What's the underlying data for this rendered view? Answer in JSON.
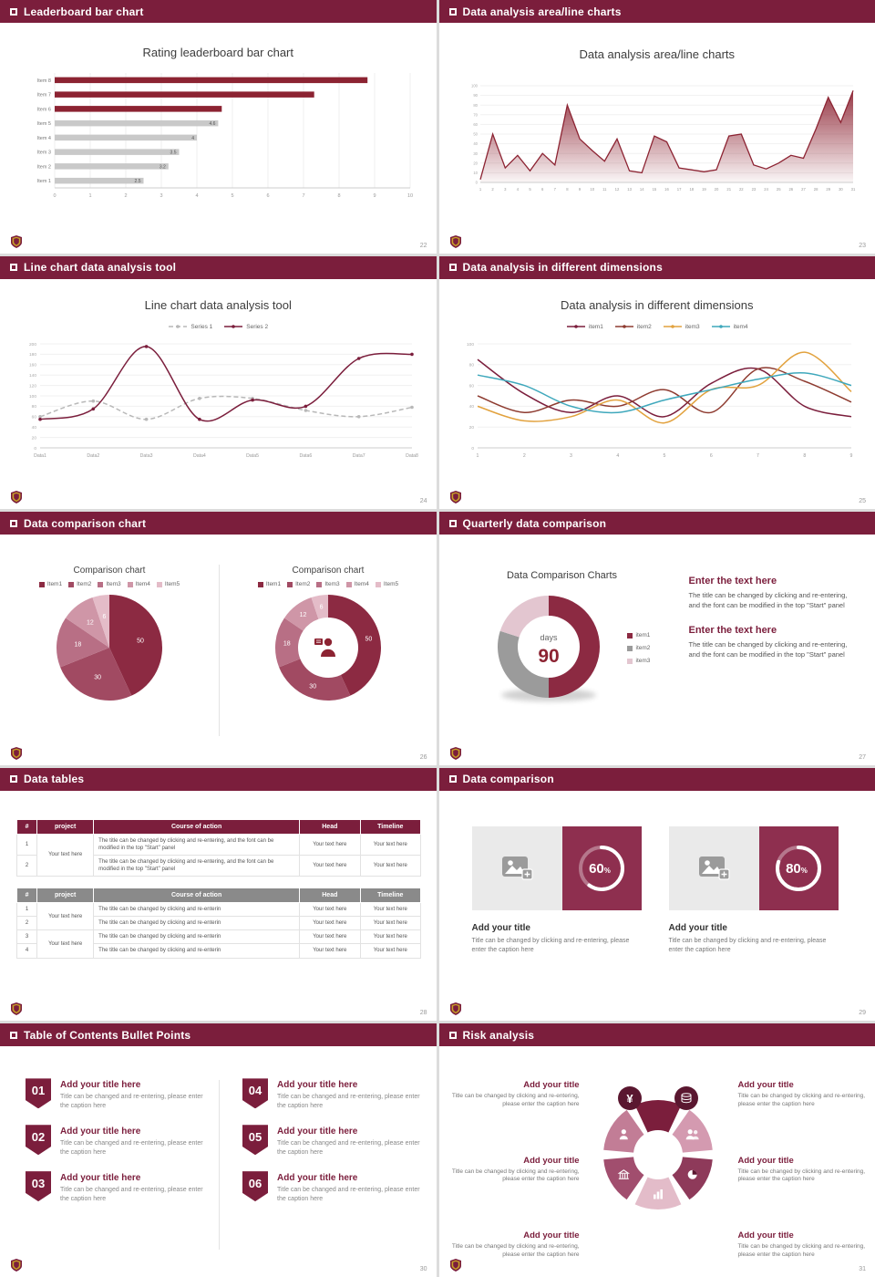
{
  "theme": {
    "maroon": "#7b1e3c",
    "chart_maroon": "#8c2332",
    "gray_bar": "#c9c9c9",
    "card_maroon": "#8e2f4f",
    "badge_dark": "#5a1730",
    "crest_gold": "#c9a227"
  },
  "icons": [
    "square-bullet-icon",
    "crest-logo",
    "image-placeholder-icon",
    "yen-moneybag-icon",
    "coins-icon",
    "people-icon",
    "pie-chart-icon",
    "bar-chart-icon",
    "bank-icon",
    "person-icon",
    "presenter-icon"
  ],
  "slides": [
    {
      "header": "Leaderboard bar chart",
      "page": "22",
      "title": "Rating leaderboard bar chart",
      "chart_data": {
        "type": "bar",
        "orientation": "horizontal",
        "categories": [
          "Item 1",
          "Item 2",
          "Item 3",
          "Item 4",
          "Item 5",
          "Item 6",
          "Item 7",
          "Item 8"
        ],
        "values": [
          2.5,
          3.2,
          3.5,
          4,
          4.6,
          4.7,
          7.3,
          8.8
        ],
        "value_labels": [
          "2.5",
          "3.2",
          "3.5",
          "4",
          "4.6",
          null,
          null,
          null
        ],
        "colors": [
          "#c9c9c9",
          "#c9c9c9",
          "#c9c9c9",
          "#c9c9c9",
          "#c9c9c9",
          "#8c2332",
          "#8c2332",
          "#8c2332"
        ],
        "xlim": [
          0,
          10
        ],
        "xticks": [
          0,
          1,
          2,
          3,
          4,
          5,
          6,
          7,
          8,
          9,
          10
        ]
      }
    },
    {
      "header": "Data analysis area/line charts",
      "page": "23",
      "title": "Data analysis area/line charts",
      "chart_data": {
        "type": "area",
        "x": [
          1,
          2,
          3,
          4,
          5,
          6,
          7,
          8,
          9,
          10,
          11,
          12,
          13,
          14,
          15,
          16,
          17,
          18,
          19,
          20,
          21,
          22,
          23,
          24,
          25,
          26,
          27,
          28,
          29,
          30,
          31
        ],
        "values": [
          3,
          50,
          15,
          28,
          12,
          30,
          18,
          80,
          45,
          33,
          22,
          45,
          12,
          10,
          48,
          42,
          15,
          13,
          11,
          13,
          48,
          50,
          18,
          14,
          20,
          28,
          25,
          55,
          88,
          62,
          95
        ],
        "ylim": [
          0,
          100
        ],
        "yticks": [
          0,
          10,
          20,
          30,
          40,
          50,
          60,
          70,
          80,
          90,
          100
        ]
      }
    },
    {
      "header": "Line chart data analysis tool",
      "page": "24",
      "title": "Line chart data analysis tool",
      "chart_data": {
        "type": "line",
        "smooth": true,
        "markers": true,
        "categories": [
          "Data1",
          "Data2",
          "Data3",
          "Data4",
          "Data5",
          "Data6",
          "Data7",
          "Data8"
        ],
        "ylim": [
          0,
          200
        ],
        "yticks": [
          0,
          20,
          40,
          60,
          80,
          100,
          120,
          140,
          160,
          180,
          200
        ],
        "series": [
          {
            "name": "Series 1",
            "color": "#b8b8b8",
            "dash": "5 3",
            "values": [
              60,
              90,
              55,
              95,
              95,
              72,
              60,
              78
            ]
          },
          {
            "name": "Series 2",
            "color": "#7b1e3c",
            "dash": null,
            "values": [
              55,
              75,
              195,
              55,
              92,
              80,
              172,
              180
            ]
          }
        ]
      }
    },
    {
      "header": "Data analysis in different dimensions",
      "page": "25",
      "title": "Data analysis in different dimensions",
      "chart_data": {
        "type": "line",
        "smooth": true,
        "markers": false,
        "x": [
          1,
          2,
          3,
          4,
          5,
          6,
          7,
          8,
          9
        ],
        "ylim": [
          0,
          100
        ],
        "yticks": [
          0,
          20,
          40,
          60,
          80,
          100
        ],
        "series": [
          {
            "name": "item1",
            "color": "#7b1e3c",
            "dash": null,
            "values": [
              85,
              52,
              34,
              50,
              30,
              62,
              76,
              40,
              30
            ]
          },
          {
            "name": "item2",
            "color": "#8e3b30",
            "dash": null,
            "values": [
              50,
              34,
              46,
              40,
              56,
              34,
              76,
              64,
              44
            ]
          },
          {
            "name": "item3",
            "color": "#e2a23e",
            "dash": null,
            "values": [
              40,
              26,
              30,
              46,
              24,
              56,
              60,
              92,
              54
            ]
          },
          {
            "name": "item4",
            "color": "#3fa8bc",
            "dash": null,
            "values": [
              70,
              60,
              40,
              34,
              46,
              56,
              66,
              72,
              60
            ]
          }
        ]
      }
    },
    {
      "header": "Data comparison chart",
      "page": "26",
      "charts": [
        {
          "type": "pie",
          "title": "Comparison chart",
          "labels": [
            "Item1",
            "Item2",
            "Item3",
            "Item4",
            "Item5"
          ],
          "values": [
            50,
            30,
            18,
            12,
            6
          ],
          "colors": [
            "#8c2a42",
            "#a14a62",
            "#b86f85",
            "#cf96a7",
            "#e4bcc8"
          ]
        },
        {
          "type": "donut",
          "title": "Comparison chart",
          "labels": [
            "Item1",
            "Item2",
            "Item3",
            "Item4",
            "Item5"
          ],
          "values": [
            50,
            30,
            18,
            12,
            6
          ],
          "colors": [
            "#8c2a42",
            "#a14a62",
            "#b86f85",
            "#cf96a7",
            "#e4bcc8"
          ]
        }
      ]
    },
    {
      "header": "Quarterly data comparison",
      "page": "27",
      "chart_data": {
        "type": "donut",
        "title": "Data Comparison Charts",
        "labels": [
          "item1",
          "item2",
          "item3"
        ],
        "values": [
          50,
          30,
          20
        ],
        "colors": [
          "#8c2a42",
          "#9b9b9b",
          "#e3c6d0"
        ],
        "center_top": "days",
        "center_value": "90"
      },
      "blocks": [
        {
          "heading": "Enter the text here",
          "body": "The title can be changed by clicking and re-entering, and the font can be modified in the top \"Start\" panel"
        },
        {
          "heading": "Enter the text here",
          "body": "The title can be changed by clicking and re-entering, and the font can be modified in the top \"Start\" panel"
        }
      ]
    },
    {
      "header": "Data tables",
      "page": "28",
      "table1": {
        "columns": [
          "#",
          "project",
          "Course of action",
          "Head",
          "Timeline"
        ],
        "project": "Your text here",
        "rows": [
          {
            "num": "1",
            "course": "The title can be changed by clicking and re-entering, and the font can be modified in the top \"Start\" panel",
            "head": "Your text here",
            "timeline": "Your text here"
          },
          {
            "num": "2",
            "course": "The title can be changed by clicking and re-entering, and the font can be modified in the top \"Start\" panel",
            "head": "Your text here",
            "timeline": "Your text here"
          }
        ]
      },
      "table2": {
        "columns": [
          "#",
          "project",
          "Course of action",
          "Head",
          "Timeline"
        ],
        "projects": [
          "Your text here",
          "Your text here"
        ],
        "rows": [
          {
            "num": "1",
            "course": "The title can be changed by clicking and re-enterin",
            "head": "Your text here",
            "timeline": "Your text here"
          },
          {
            "num": "2",
            "course": "The title can be changed by clicking and re-enterin",
            "head": "Your text here",
            "timeline": "Your text here"
          },
          {
            "num": "3",
            "course": "The title can be changed by clicking and re-enterin",
            "head": "Your text here",
            "timeline": "Your text here"
          },
          {
            "num": "4",
            "course": "The title can be changed by clicking and re-enterin",
            "head": "Your text here",
            "timeline": "Your text here"
          }
        ]
      }
    },
    {
      "header": "Data comparison",
      "page": "29",
      "cards": [
        {
          "percent": 60,
          "title": "Add your title",
          "caption": "Title can be changed by clicking and re-entering, please enter the caption here"
        },
        {
          "percent": 80,
          "title": "Add your title",
          "caption": "Title can be changed by clicking and re-entering, please enter the caption here"
        }
      ]
    },
    {
      "header": "Table of Contents Bullet Points",
      "page": "30",
      "items": [
        {
          "num": "01",
          "title": "Add your title here",
          "caption": "Title can be changed and re-entering, please enter the caption here"
        },
        {
          "num": "02",
          "title": "Add your title here",
          "caption": "Title can be changed and re-entering, please enter the caption here"
        },
        {
          "num": "03",
          "title": "Add your title here",
          "caption": "Title can be changed and re-entering, please enter the caption here"
        },
        {
          "num": "04",
          "title": "Add your title here",
          "caption": "Title can be changed and re-entering, please enter the caption here"
        },
        {
          "num": "05",
          "title": "Add your title here",
          "caption": "Title can be changed and re-entering, please enter the caption here"
        },
        {
          "num": "06",
          "title": "Add your title here",
          "caption": "Title can be changed and re-entering, please enter the caption here"
        }
      ]
    },
    {
      "header": "Risk analysis",
      "page": "31",
      "petal_colors": [
        "#7b1e3c",
        "#d49ab0",
        "#8e3a5a",
        "#e3bcc9",
        "#a14e6e",
        "#c27d96"
      ],
      "left_blocks": [
        {
          "title": "Add your title",
          "caption": "Title can be changed by clicking and re-entering, please enter the caption here"
        },
        {
          "title": "Add your title",
          "caption": "Title can be changed by clicking and re-entering, please enter the caption here"
        },
        {
          "title": "Add your title",
          "caption": "Title can be changed by clicking and re-entering, please enter the caption here"
        }
      ],
      "right_blocks": [
        {
          "title": "Add your title",
          "caption": "Title can be changed by clicking and re-entering, please enter the caption here"
        },
        {
          "title": "Add your title",
          "caption": "Title can be changed by clicking and re-entering, please enter the caption here"
        },
        {
          "title": "Add your title",
          "caption": "Title can be changed by clicking and re-entering, please enter the caption here"
        }
      ]
    }
  ]
}
